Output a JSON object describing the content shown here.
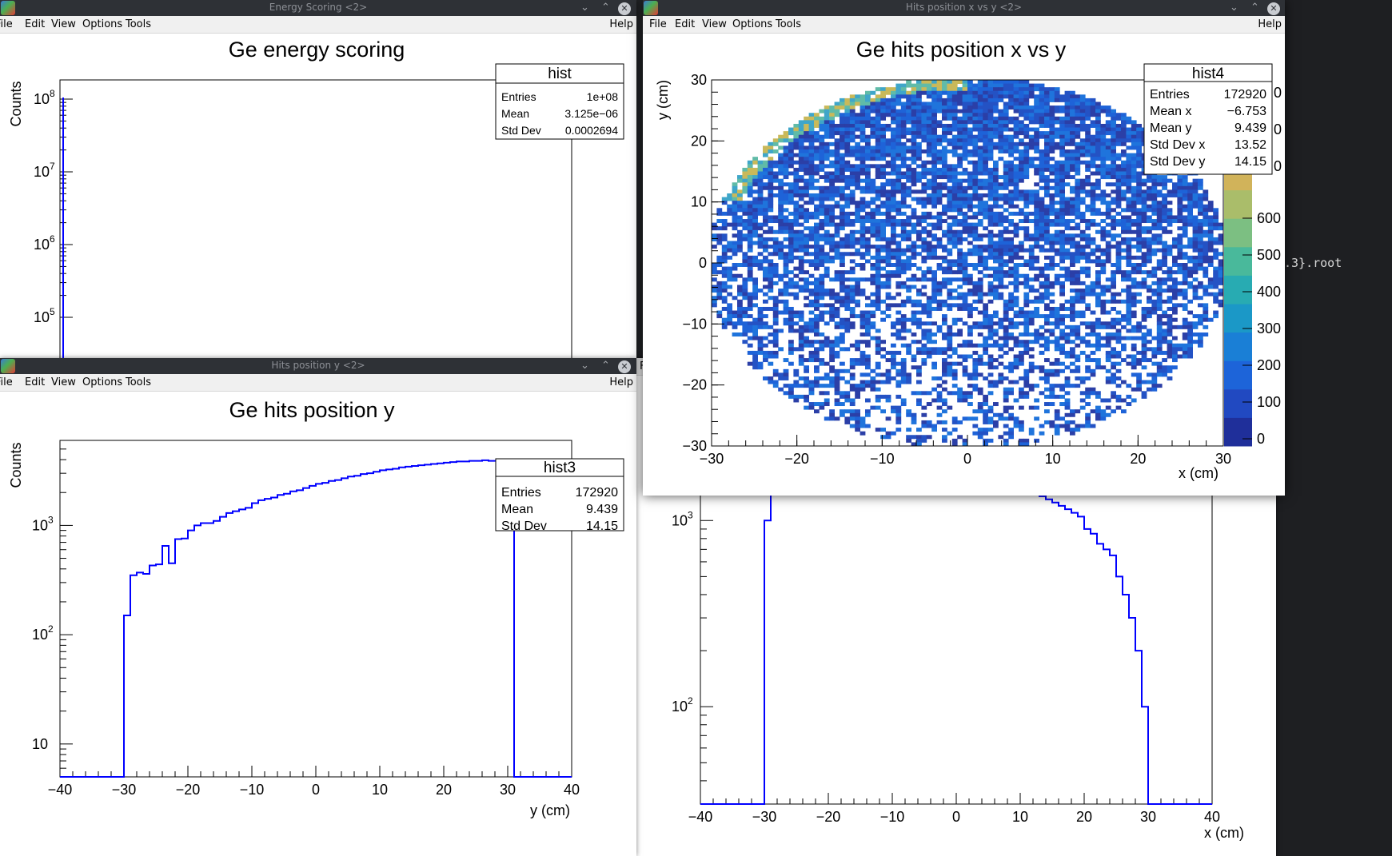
{
  "terminal": {
    "text": ".3}.root"
  },
  "menu": {
    "file": "File",
    "edit": "Edit",
    "view": "View",
    "options": "Options",
    "tools": "Tools",
    "help": "Help"
  },
  "windows": {
    "energy": {
      "title": "Energy Scoring <2>",
      "plot_title": "Ge energy scoring",
      "ylabel": "Counts",
      "yticks": [
        "10",
        "10",
        "10",
        "10"
      ],
      "yexps": [
        "8",
        "7",
        "6",
        "5"
      ],
      "stats": {
        "name": "hist",
        "rows": [
          [
            "Entries",
            "1e+08"
          ],
          [
            "Mean",
            "3.125e−06"
          ],
          [
            "Std Dev",
            "0.0002694"
          ]
        ]
      }
    },
    "posy": {
      "title": "Hits position y <2>",
      "plot_title": "Ge hits position y",
      "ylabel": "Counts",
      "xlabel": "y (cm)",
      "xticks": [
        "−40",
        "−30",
        "−20",
        "−10",
        "0",
        "10",
        "20",
        "30",
        "40"
      ],
      "yticks": [
        {
          "b": "10",
          "e": "3"
        },
        {
          "b": "10",
          "e": "2"
        },
        {
          "b": "10",
          "e": ""
        }
      ],
      "stats": {
        "name": "hist3",
        "rows": [
          [
            "Entries",
            "172920"
          ],
          [
            "Mean",
            "9.439"
          ],
          [
            "Std Dev",
            "14.15"
          ]
        ]
      }
    },
    "posx": {
      "xlabel": "x (cm)",
      "xticks": [
        "−40",
        "−30",
        "−20",
        "−10",
        "0",
        "10",
        "20",
        "30",
        "40"
      ],
      "yticks": [
        {
          "b": "10",
          "e": "3"
        },
        {
          "b": "10",
          "e": "2"
        }
      ]
    },
    "xy": {
      "title": "Hits position x vs y <2>",
      "plot_title": "Ge hits position x vs y",
      "ylabel": "y (cm)",
      "xlabel": "x (cm)",
      "xticks": [
        "−30",
        "−20",
        "−10",
        "0",
        "10",
        "20",
        "30"
      ],
      "yticks": [
        "30",
        "20",
        "10",
        "0",
        "−10",
        "−20",
        "−30"
      ],
      "zticks": [
        "600",
        "500",
        "400",
        "300",
        "200",
        "100",
        "0"
      ],
      "stats": {
        "name": "hist4",
        "rows": [
          [
            "Entries",
            "172920"
          ],
          [
            "Mean x",
            "−6.753"
          ],
          [
            "Mean y",
            "9.439"
          ],
          [
            "Std Dev x",
            "13.52"
          ],
          [
            "Std Dev y",
            "14.15"
          ]
        ]
      },
      "clipped_z_labels": [
        "0",
        "0",
        "0"
      ]
    }
  },
  "chart_data": [
    {
      "type": "bar",
      "title": "Ge energy scoring",
      "ylabel": "Counts",
      "yscale": "log",
      "stats": {
        "Entries": "1e+08",
        "Mean": "3.125e-06",
        "Std Dev": "0.0002694"
      }
    },
    {
      "type": "line",
      "title": "Ge hits position y",
      "xlabel": "y (cm)",
      "ylabel": "Counts",
      "yscale": "log",
      "xlim": [
        -40,
        40
      ],
      "ylim": [
        5,
        6000
      ],
      "x": [
        -30,
        -29,
        -28,
        -27,
        -26,
        -25,
        -24,
        -23,
        -22,
        -21,
        -20,
        -19,
        -18,
        -17,
        -16,
        -15,
        -14,
        -13,
        -12,
        -11,
        -10,
        -9,
        -8,
        -7,
        -6,
        -5,
        -4,
        -3,
        -2,
        -1,
        0,
        1,
        2,
        3,
        4,
        5,
        6,
        7,
        8,
        9,
        10,
        11,
        12,
        13,
        14,
        15,
        16,
        17,
        18,
        19,
        20,
        21,
        22,
        23,
        24,
        25,
        26,
        27,
        28,
        29,
        30
      ],
      "values": [
        150,
        350,
        370,
        360,
        430,
        440,
        650,
        450,
        750,
        760,
        900,
        1000,
        1050,
        1050,
        1100,
        1200,
        1300,
        1350,
        1400,
        1450,
        1600,
        1700,
        1750,
        1800,
        1900,
        1950,
        2050,
        2100,
        2200,
        2300,
        2400,
        2450,
        2550,
        2600,
        2700,
        2800,
        2850,
        2950,
        3000,
        3100,
        3200,
        3250,
        3300,
        3400,
        3450,
        3500,
        3550,
        3600,
        3650,
        3700,
        3750,
        3800,
        3850,
        3850,
        3900,
        3900,
        3950,
        3900,
        3900,
        3850,
        3800
      ],
      "stats": {
        "Entries": "172920",
        "Mean": "9.439",
        "Std Dev": "14.15"
      }
    },
    {
      "type": "line",
      "title": "",
      "xlabel": "x (cm)",
      "yscale": "log",
      "xlim": [
        -40,
        40
      ],
      "ylim": [
        30,
        6000
      ],
      "x": [
        -30,
        -29,
        -28,
        -27,
        -26,
        -25,
        -24,
        -23,
        -22,
        -21,
        -20,
        -19,
        -18,
        -17,
        -16,
        -15,
        -14,
        -13,
        -12,
        -11,
        -10,
        -9,
        -8,
        -7,
        -6,
        -5,
        -4,
        -3,
        -2,
        -1,
        0,
        1,
        2,
        3,
        4,
        5,
        6,
        7,
        8,
        9,
        10,
        11,
        12,
        13,
        14,
        15,
        16,
        17,
        18,
        19,
        20,
        21,
        22,
        23,
        24,
        25,
        26,
        27,
        28,
        29,
        30
      ],
      "values": [
        1000,
        1500,
        1800,
        2000,
        2300,
        2500,
        2700,
        2800,
        3000,
        3100,
        3200,
        3300,
        3300,
        3300,
        3200,
        3200,
        3100,
        3100,
        3000,
        3000,
        3000,
        2900,
        2900,
        2800,
        2700,
        2700,
        2600,
        2500,
        2400,
        2300,
        2200,
        2100,
        2000,
        1900,
        1850,
        1800,
        1750,
        1700,
        1600,
        1550,
        1500,
        1450,
        1400,
        1350,
        1300,
        1250,
        1200,
        1150,
        1100,
        1050,
        900,
        850,
        750,
        700,
        650,
        500,
        400,
        300,
        200,
        100,
        30
      ]
    },
    {
      "type": "heatmap",
      "title": "Ge hits position x vs y",
      "xlabel": "x (cm)",
      "ylabel": "y (cm)",
      "xlim": [
        -30,
        30
      ],
      "ylim": [
        -30,
        30
      ],
      "zlim": [
        0,
        700
      ],
      "stats": {
        "Entries": "172920",
        "Mean x": "-6.753",
        "Mean y": "9.439",
        "Std Dev x": "13.52",
        "Std Dev y": "14.15"
      }
    }
  ]
}
